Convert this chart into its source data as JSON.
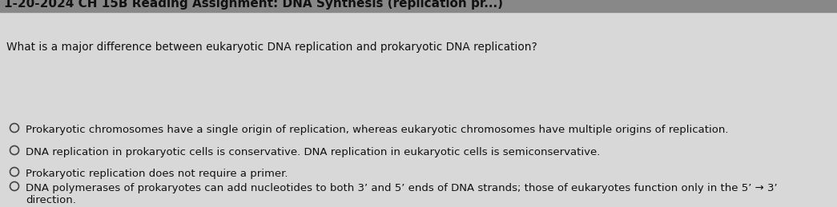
{
  "bg_color": "#d8d8d8",
  "title_text": "1-20-2024 CH 15B Reading Assignment: DNA Synthesis (replication pr...)",
  "question": "What is a major difference between eukaryotic DNA replication and prokaryotic DNA replication?",
  "options": [
    "Prokaryotic chromosomes have a single origin of replication, whereas eukaryotic chromosomes have multiple origins of replication.",
    "DNA replication in prokaryotic cells is conservative. DNA replication in eukaryotic cells is semiconservative.",
    "Prokaryotic replication does not require a primer.",
    "DNA polymerases of prokaryotes can add nucleotides to both 3’ and 5’ ends of DNA strands; those of eukaryotes function only in the 5’ → 3’\ndirection."
  ],
  "text_color": "#111111",
  "font_size_title": 11.0,
  "font_size_question": 9.8,
  "font_size_options": 9.5,
  "circle_color": "#444444",
  "title_bg": "#b0b0b0"
}
